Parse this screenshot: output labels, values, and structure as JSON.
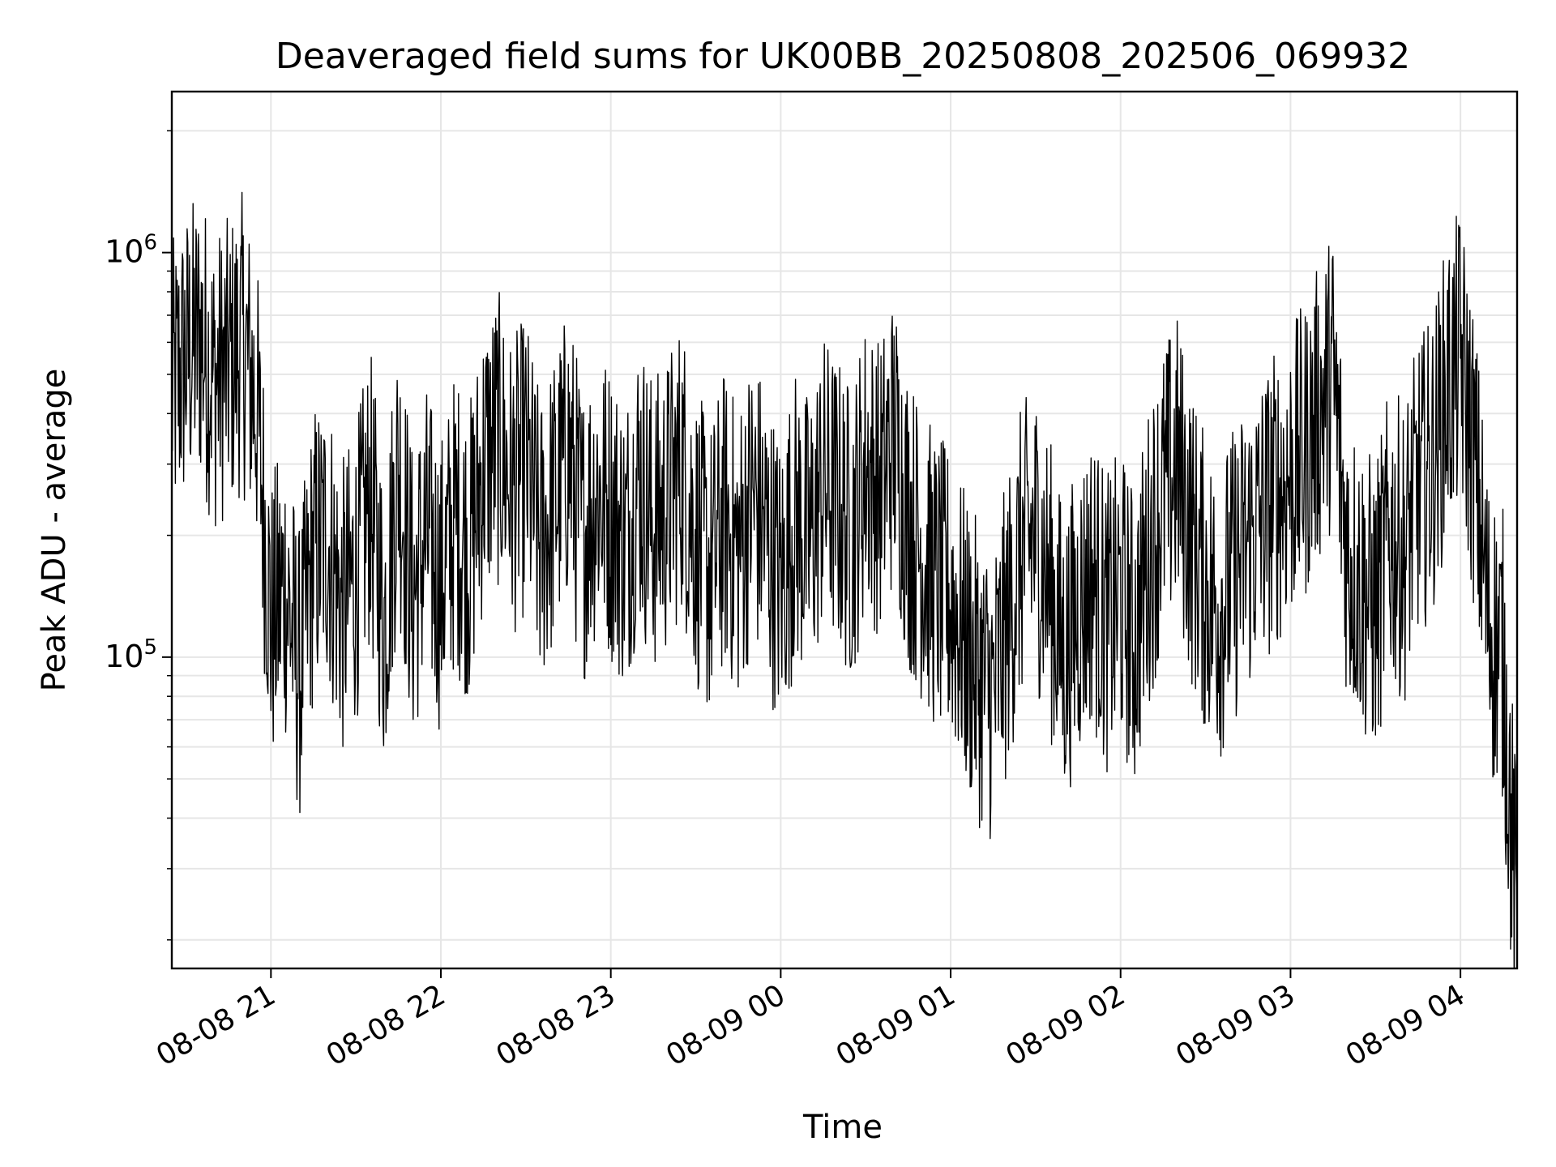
{
  "chart_data": {
    "type": "line",
    "title": "Deaveraged field sums for UK00BB_20250808_202506_069932",
    "xlabel": "Time",
    "ylabel": "Peak ADU - average",
    "xlim": [
      "2025-08-08 20:25",
      "2025-08-09 04:20"
    ],
    "ylim": [
      17000,
      2500000
    ],
    "yscale": "log",
    "grid": true,
    "line_color": "#000000",
    "xticks": [
      {
        "at": "2025-08-08 21:00",
        "label": "08-08 21"
      },
      {
        "at": "2025-08-08 22:00",
        "label": "08-08 22"
      },
      {
        "at": "2025-08-08 23:00",
        "label": "08-08 23"
      },
      {
        "at": "2025-08-09 00:00",
        "label": "08-09 00"
      },
      {
        "at": "2025-08-09 01:00",
        "label": "08-09 01"
      },
      {
        "at": "2025-08-09 02:00",
        "label": "08-09 02"
      },
      {
        "at": "2025-08-09 03:00",
        "label": "08-09 03"
      },
      {
        "at": "2025-08-09 04:00",
        "label": "08-09 04"
      }
    ],
    "yticks": [
      {
        "value": 100000,
        "base": "10",
        "exp": "5"
      },
      {
        "value": 1000000,
        "base": "10",
        "exp": "6"
      }
    ],
    "series": [
      {
        "x": [
          "2025-08-08 20:25",
          "2025-08-08 20:30",
          "2025-08-08 20:35",
          "2025-08-08 20:40",
          "2025-08-08 20:45",
          "2025-08-08 20:50",
          "2025-08-08 20:55",
          "2025-08-08 21:00",
          "2025-08-08 21:05",
          "2025-08-08 21:10",
          "2025-08-08 21:15",
          "2025-08-08 21:20",
          "2025-08-08 21:25",
          "2025-08-08 21:30",
          "2025-08-08 21:35",
          "2025-08-08 21:40",
          "2025-08-08 21:45",
          "2025-08-08 21:50",
          "2025-08-08 21:55",
          "2025-08-08 22:00",
          "2025-08-08 22:05",
          "2025-08-08 22:10",
          "2025-08-08 22:15",
          "2025-08-08 22:20",
          "2025-08-08 22:25",
          "2025-08-08 22:30",
          "2025-08-08 22:35",
          "2025-08-08 22:40",
          "2025-08-08 22:45",
          "2025-08-08 22:50",
          "2025-08-08 22:55",
          "2025-08-08 23:00",
          "2025-08-08 23:05",
          "2025-08-08 23:10",
          "2025-08-08 23:15",
          "2025-08-08 23:20",
          "2025-08-08 23:25",
          "2025-08-08 23:30",
          "2025-08-08 23:35",
          "2025-08-08 23:40",
          "2025-08-08 23:45",
          "2025-08-08 23:50",
          "2025-08-08 23:55",
          "2025-08-09 00:00",
          "2025-08-09 00:05",
          "2025-08-09 00:10",
          "2025-08-09 00:15",
          "2025-08-09 00:20",
          "2025-08-09 00:25",
          "2025-08-09 00:30",
          "2025-08-09 00:35",
          "2025-08-09 00:40",
          "2025-08-09 00:45",
          "2025-08-09 00:50",
          "2025-08-09 00:55",
          "2025-08-09 01:00",
          "2025-08-09 01:05",
          "2025-08-09 01:10",
          "2025-08-09 01:15",
          "2025-08-09 01:20",
          "2025-08-09 01:25",
          "2025-08-09 01:30",
          "2025-08-09 01:35",
          "2025-08-09 01:40",
          "2025-08-09 01:45",
          "2025-08-09 01:50",
          "2025-08-09 01:55",
          "2025-08-09 02:00",
          "2025-08-09 02:05",
          "2025-08-09 02:10",
          "2025-08-09 02:15",
          "2025-08-09 02:20",
          "2025-08-09 02:25",
          "2025-08-09 02:30",
          "2025-08-09 02:35",
          "2025-08-09 02:40",
          "2025-08-09 02:45",
          "2025-08-09 02:50",
          "2025-08-09 02:55",
          "2025-08-09 03:00",
          "2025-08-09 03:05",
          "2025-08-09 03:10",
          "2025-08-09 03:15",
          "2025-08-09 03:20",
          "2025-08-09 03:25",
          "2025-08-09 03:30",
          "2025-08-09 03:35",
          "2025-08-09 03:40",
          "2025-08-09 03:45",
          "2025-08-09 03:50",
          "2025-08-09 03:55",
          "2025-08-09 04:00",
          "2025-08-09 04:05",
          "2025-08-09 04:10",
          "2025-08-09 04:15",
          "2025-08-09 04:20"
        ],
        "y": [
          450000,
          550000,
          620000,
          480000,
          520000,
          600000,
          420000,
          120000,
          150000,
          90000,
          180000,
          200000,
          130000,
          160000,
          250000,
          120000,
          300000,
          140000,
          200000,
          150000,
          220000,
          180000,
          300000,
          350000,
          260000,
          300000,
          190000,
          240000,
          320000,
          200000,
          260000,
          230000,
          190000,
          280000,
          210000,
          240000,
          300000,
          200000,
          160000,
          220000,
          180000,
          250000,
          200000,
          150000,
          220000,
          190000,
          270000,
          240000,
          200000,
          300000,
          260000,
          350000,
          220000,
          180000,
          150000,
          140000,
          110000,
          90000,
          80000,
          120000,
          180000,
          200000,
          150000,
          100000,
          130000,
          160000,
          120000,
          140000,
          110000,
          180000,
          250000,
          300000,
          200000,
          150000,
          130000,
          160000,
          190000,
          220000,
          250000,
          280000,
          320000,
          400000,
          500000,
          180000,
          150000,
          130000,
          200000,
          180000,
          260000,
          300000,
          450000,
          550000,
          300000,
          120000,
          100000,
          20000
        ]
      }
    ]
  }
}
